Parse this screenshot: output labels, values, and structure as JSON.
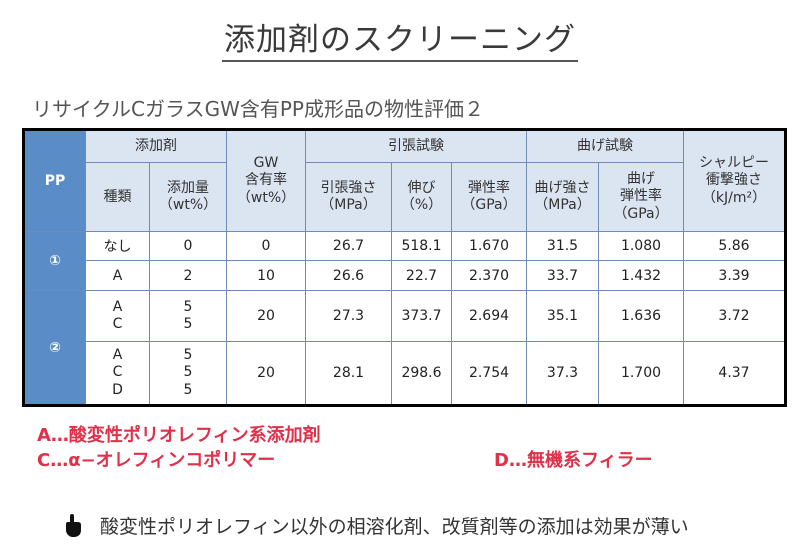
{
  "title": "添加剤のスクリーニング",
  "subtitle": "リサイクルCガラスGW含有PP成形品の物性評価２",
  "table": {
    "pp_header": "PP",
    "additive_group": "添加剤",
    "additive_type": "種類",
    "additive_amount": "添加量\n（wt%）",
    "gw_content": "GW\n含有率\n（wt%）",
    "tensile_group": "引張試験",
    "tensile_strength": "引張強さ\n（MPa）",
    "elongation": "伸び\n（%）",
    "tensile_modulus": "弾性率\n（GPa）",
    "bending_group": "曲げ試験",
    "bending_strength": "曲げ強さ\n（MPa）",
    "bending_modulus": "曲げ\n弾性率\n（GPa）",
    "charpy": "シャルピー\n衝撃強さ\n（kJ/m²）",
    "groups": [
      {
        "label": "①",
        "rows": [
          {
            "type": "なし",
            "amount": "0",
            "gw": "0",
            "ts": "26.7",
            "el": "518.1",
            "tm": "1.670",
            "bs": "31.5",
            "bm": "1.080",
            "ch": "5.86"
          },
          {
            "type": "A",
            "amount": "2",
            "gw": "10",
            "ts": "26.6",
            "el": "22.7",
            "tm": "2.370",
            "bs": "33.7",
            "bm": "1.432",
            "ch": "3.39"
          }
        ]
      },
      {
        "label": "②",
        "rows": [
          {
            "type": "A\nC",
            "amount": "5\n5",
            "gw": "20",
            "ts": "27.3",
            "el": "373.7",
            "tm": "2.694",
            "bs": "35.1",
            "bm": "1.636",
            "ch": "3.72"
          },
          {
            "type": "A\nC\nD",
            "amount": "5\n5\n5",
            "gw": "20",
            "ts": "28.1",
            "el": "298.6",
            "tm": "2.754",
            "bs": "37.3",
            "bm": "1.700",
            "ch": "4.37"
          }
        ]
      }
    ]
  },
  "notes": {
    "a": "A…酸変性ポリオレフィン系添加剤",
    "c": "C…α−オレフィンコポリマー",
    "d": "D…無機系フィラー"
  },
  "conclusion": "酸変性ポリオレフィン以外の相溶化剤、改質剤等の添加は効果が薄い",
  "colors": {
    "header_blue": "#5a8dc8",
    "header_light": "#dbe4f1",
    "note_red": "#e0304a"
  },
  "icons": {
    "bullet": "pointing-hand-icon"
  }
}
